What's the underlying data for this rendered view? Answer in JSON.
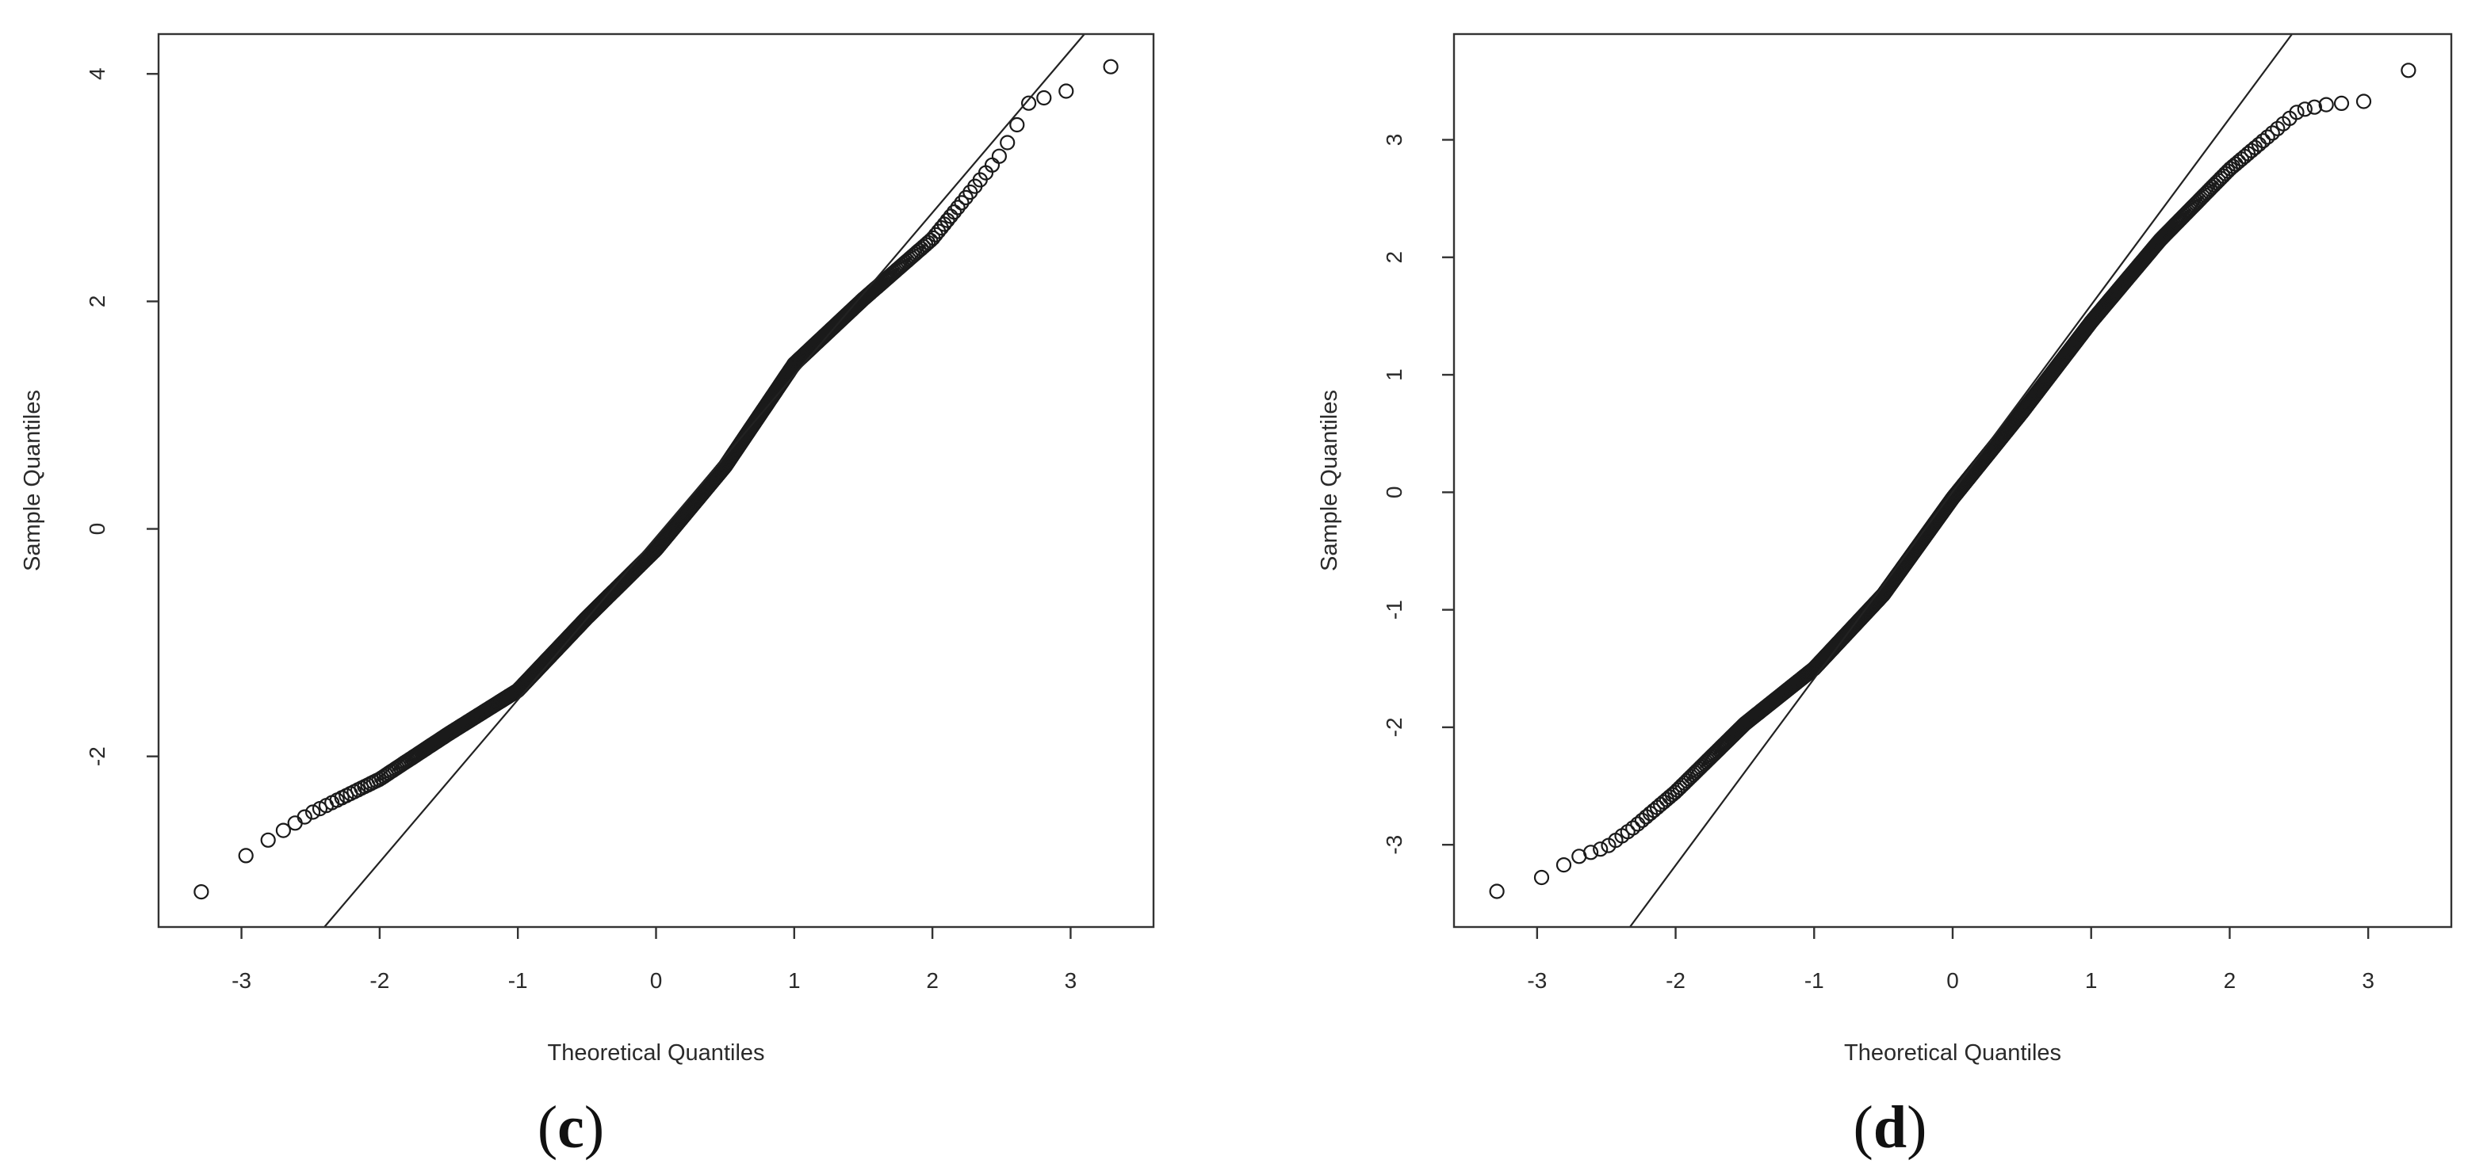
{
  "figure": {
    "panels": [
      {
        "label_open": "(",
        "label_letter": "c",
        "label_close": ")"
      },
      {
        "label_open": "(",
        "label_letter": "d",
        "label_close": ")"
      }
    ]
  },
  "chart_data": [
    {
      "type": "scatter",
      "subtype": "normal-qq-plot",
      "title": "",
      "xlabel": "Theoretical Quantiles",
      "ylabel": "Sample Quantiles",
      "xlim": [
        -3.6,
        3.6
      ],
      "ylim": [
        -3.5,
        4.35
      ],
      "xticks": [
        -3,
        -2,
        -1,
        0,
        1,
        2,
        3
      ],
      "xtick_labels": [
        "-3",
        "-2",
        "-1",
        "0",
        "1",
        "2",
        "3"
      ],
      "yticks": [
        -2,
        0,
        2,
        4
      ],
      "ytick_labels": [
        "-2",
        "0",
        "2",
        "4"
      ],
      "reference_line": {
        "x": [
          -2.4,
          3.1
        ],
        "y": [
          -3.5,
          4.35
        ]
      },
      "sample_size": 1000,
      "curve_knots": {
        "x": [
          -3.3,
          -3.0,
          -2.8,
          -2.5,
          -2.0,
          -1.5,
          -1.0,
          -0.5,
          0.0,
          0.5,
          1.0,
          1.5,
          2.0,
          2.3,
          2.5,
          2.7,
          3.0,
          3.3
        ],
        "y": [
          -3.2,
          -2.9,
          -2.73,
          -2.5,
          -2.2,
          -1.8,
          -1.42,
          -0.78,
          -0.18,
          0.55,
          1.45,
          2.02,
          2.55,
          3.0,
          3.3,
          3.75,
          3.86,
          4.07
        ]
      },
      "grid": false,
      "legend": "none"
    },
    {
      "type": "scatter",
      "subtype": "normal-qq-plot",
      "title": "",
      "xlabel": "Theoretical Quantiles",
      "ylabel": "Sample Quantiles",
      "xlim": [
        -3.6,
        3.6
      ],
      "ylim": [
        -3.7,
        3.9
      ],
      "xticks": [
        -3,
        -2,
        -1,
        0,
        1,
        2,
        3
      ],
      "xtick_labels": [
        "-3",
        "-2",
        "-1",
        "0",
        "1",
        "2",
        "3"
      ],
      "yticks": [
        -3,
        -2,
        -1,
        0,
        1,
        2,
        3
      ],
      "ytick_labels": [
        "-3",
        "-2",
        "-1",
        "0",
        "1",
        "2",
        "3"
      ],
      "reference_line": {
        "x": [
          -2.33,
          2.45
        ],
        "y": [
          -3.7,
          3.9
        ]
      },
      "sample_size": 1000,
      "curve_knots": {
        "x": [
          -3.3,
          -3.0,
          -2.7,
          -2.5,
          -2.3,
          -2.0,
          -1.5,
          -1.0,
          -0.5,
          0.0,
          0.5,
          1.0,
          1.5,
          2.0,
          2.3,
          2.5,
          2.7,
          3.0,
          3.3
        ],
        "y": [
          -3.4,
          -3.3,
          -3.1,
          -3.02,
          -2.85,
          -2.55,
          -1.97,
          -1.5,
          -0.87,
          -0.05,
          0.68,
          1.45,
          2.15,
          2.75,
          3.05,
          3.25,
          3.3,
          3.33,
          3.6
        ]
      },
      "grid": false,
      "legend": "none"
    }
  ]
}
